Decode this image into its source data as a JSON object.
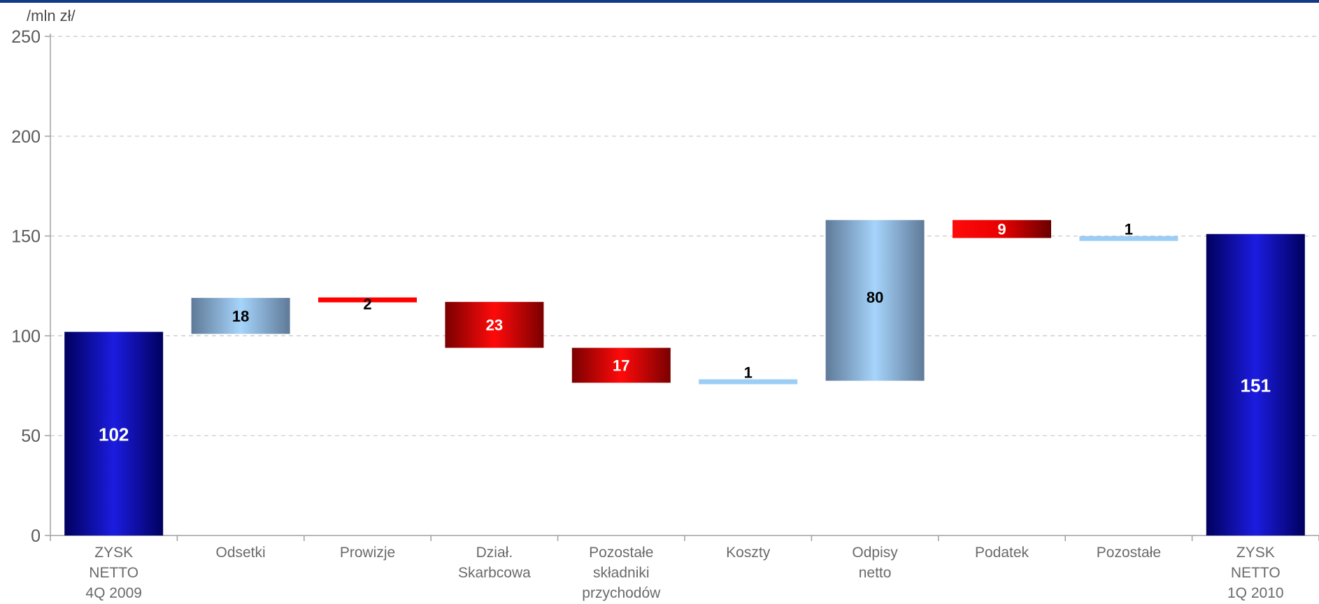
{
  "chart_data": {
    "type": "bar",
    "subtype": "waterfall",
    "ylabel": "/mln zł/",
    "ylim": [
      0,
      250
    ],
    "yticks": [
      0,
      50,
      100,
      150,
      200,
      250
    ],
    "grid": true,
    "legend": "none",
    "categories": [
      [
        "ZYSK",
        "NETTO",
        "4Q 2009"
      ],
      [
        "Odsetki"
      ],
      [
        "Prowizje"
      ],
      [
        "Dział.",
        "Skarbcowa"
      ],
      [
        "Pozostałe",
        "składniki",
        "przychodów"
      ],
      [
        "Koszty"
      ],
      [
        "Odpisy",
        "netto"
      ],
      [
        "Podatek"
      ],
      [
        "Pozostałe"
      ],
      [
        "ZYSK",
        "NETTO",
        "1Q 2010"
      ]
    ],
    "bars": [
      {
        "kind": "total",
        "start": 0,
        "end": 102,
        "label": "102"
      },
      {
        "kind": "increase",
        "start": 101,
        "end": 119,
        "label": "18"
      },
      {
        "kind": "decrease",
        "start": 119,
        "end": 117,
        "label": "2"
      },
      {
        "kind": "decrease",
        "start": 117,
        "end": 94,
        "label": "23"
      },
      {
        "kind": "decrease",
        "start": 94,
        "end": 76.5,
        "label": "17"
      },
      {
        "kind": "increase",
        "start": 76.5,
        "end": 77.5,
        "label": "1"
      },
      {
        "kind": "increase",
        "start": 77.5,
        "end": 158,
        "label": "80"
      },
      {
        "kind": "decrease",
        "start": 158,
        "end": 149,
        "label": "9"
      },
      {
        "kind": "increase",
        "start": 148,
        "end": 149.5,
        "label": "1"
      },
      {
        "kind": "total",
        "start": 0,
        "end": 151,
        "label": "151"
      }
    ],
    "colors": {
      "total": "#1a1ad8",
      "total_dark": "#00006e",
      "increase": "#9ccdf5",
      "increase_dark": "#5a7a9c",
      "decrease": "#ff0000",
      "decrease_dark": "#7a0000",
      "grid": "#c8c8c8",
      "axis": "#a0a0a0"
    }
  }
}
